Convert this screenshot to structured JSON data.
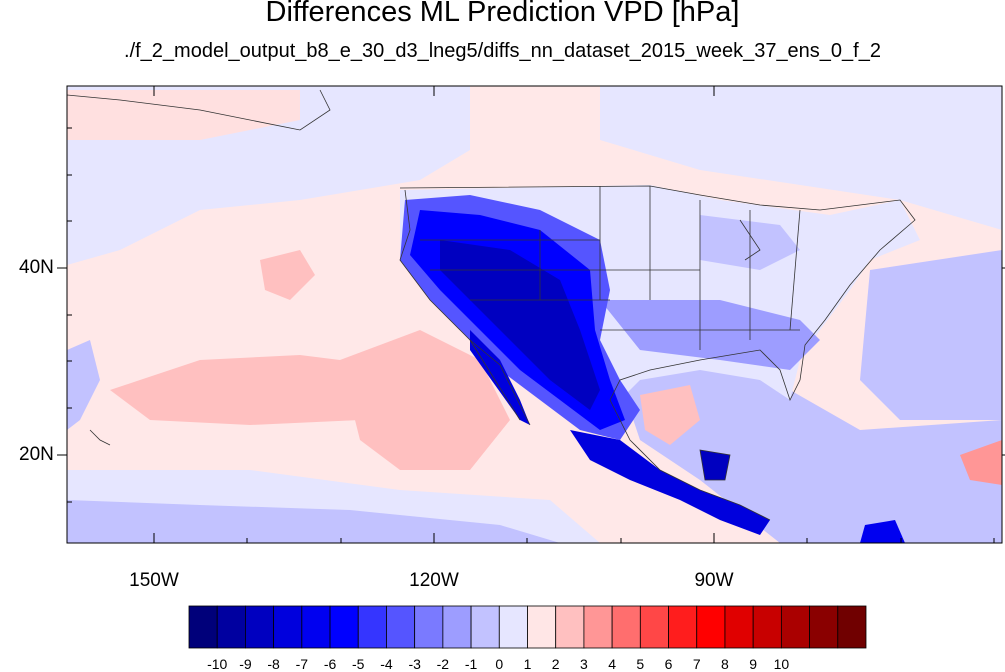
{
  "title": "Differences ML Prediction VPD [hPa]",
  "subtitle": "./f_2_model_output_b8_e_30_d3_lneg5/diffs_nn_dataset_2015_week_37_ens_0_f_2",
  "lat_labels": [
    "40N",
    "20N"
  ],
  "lon_labels": [
    "150W",
    "120W",
    "90W"
  ],
  "colorbar": {
    "colors": [
      "#00007a",
      "#0000a0",
      "#0000c0",
      "#0000dd",
      "#0000f0",
      "#0000ff",
      "#3535ff",
      "#5555ff",
      "#7a7aff",
      "#9d9dff",
      "#c2c2ff",
      "#e6e6ff",
      "#ffe6e6",
      "#ffc0c0",
      "#ff9696",
      "#ff6e6e",
      "#ff4747",
      "#ff1d1d",
      "#ff0000",
      "#e00000",
      "#c80000",
      "#aa0000",
      "#8a0000",
      "#700000"
    ],
    "tick_labels": [
      "-10",
      "-9",
      "-8",
      "-7",
      "-6",
      "-5",
      "-4",
      "-3",
      "-2",
      "-1",
      "0",
      "1",
      "2",
      "3",
      "4",
      "5",
      "6",
      "7",
      "8",
      "9",
      "10"
    ]
  }
}
